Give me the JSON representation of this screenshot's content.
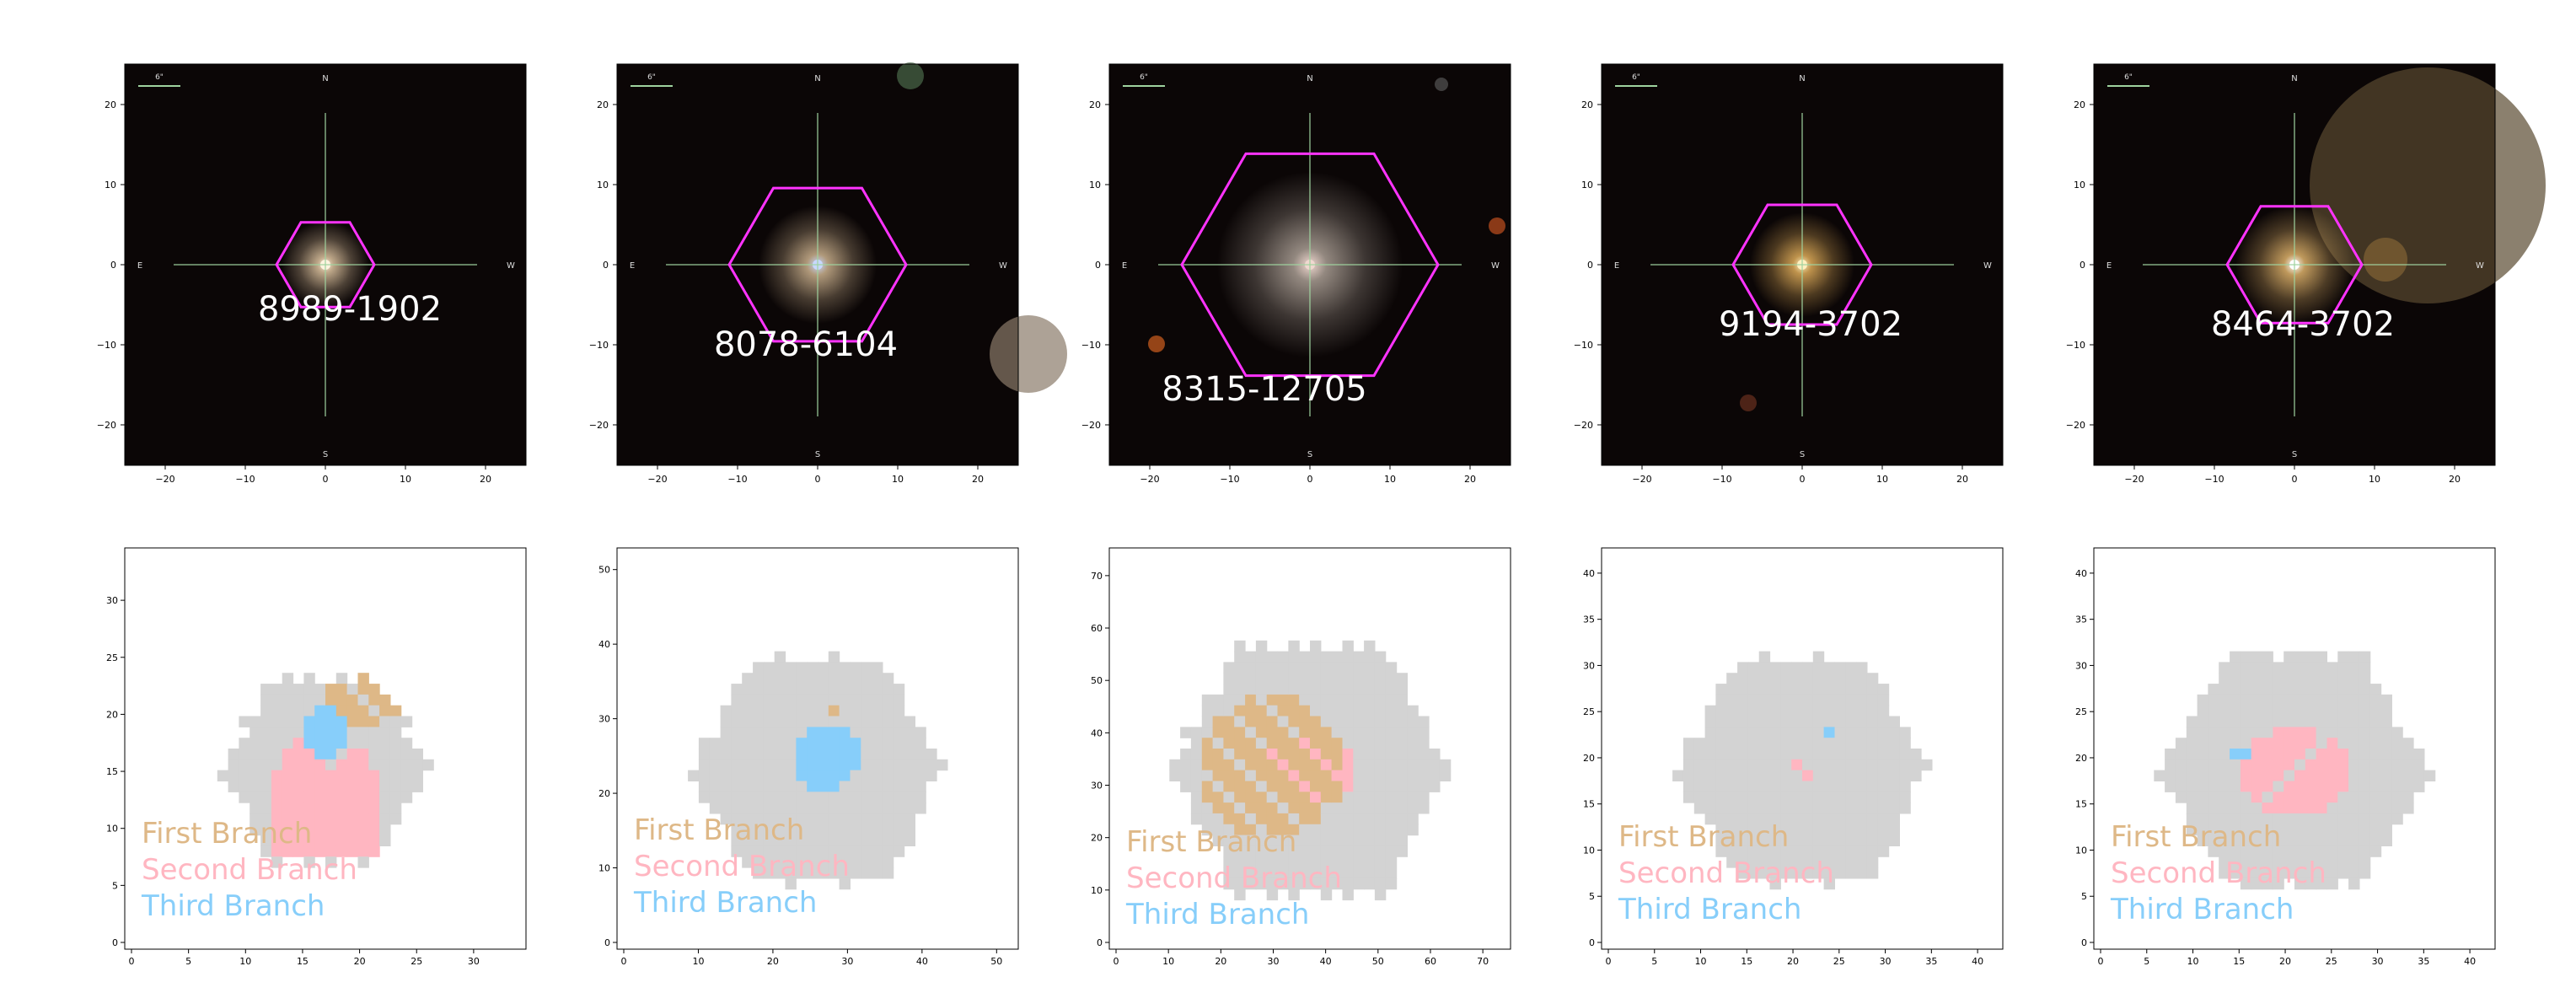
{
  "galaxies": [
    {
      "id": "8989-1902",
      "x_ticks": [
        "−20",
        "−10",
        "0",
        "10",
        "20"
      ],
      "y_ticks": [
        "20",
        "10",
        "0",
        "−10",
        "−20"
      ],
      "map_x_ticks": [
        "0",
        "5",
        "10",
        "15",
        "20",
        "25",
        "30"
      ],
      "map_y_ticks": [
        "0",
        "5",
        "10",
        "15",
        "20",
        "25",
        "30"
      ],
      "map_xmax": 34,
      "map_ymax": 34
    },
    {
      "id": "8078-6104",
      "x_ticks": [
        "−20",
        "−10",
        "0",
        "10",
        "20"
      ],
      "y_ticks": [
        "20",
        "10",
        "0",
        "−10",
        "−20"
      ],
      "map_x_ticks": [
        "0",
        "10",
        "20",
        "30",
        "40",
        "50"
      ],
      "map_y_ticks": [
        "0",
        "10",
        "20",
        "30",
        "40",
        "50"
      ],
      "map_xmax": 52,
      "map_ymax": 52
    },
    {
      "id": "8315-12705",
      "x_ticks": [
        "−20",
        "−10",
        "0",
        "10",
        "20"
      ],
      "y_ticks": [
        "20",
        "10",
        "0",
        "−10",
        "−20"
      ],
      "map_x_ticks": [
        "0",
        "10",
        "20",
        "30",
        "40",
        "50",
        "60",
        "70"
      ],
      "map_y_ticks": [
        "0",
        "10",
        "20",
        "30",
        "40",
        "50",
        "60",
        "70"
      ],
      "map_xmax": 74,
      "map_ymax": 74
    },
    {
      "id": "9194-3702",
      "x_ticks": [
        "−20",
        "−10",
        "0",
        "10",
        "20"
      ],
      "y_ticks": [
        "20",
        "10",
        "0",
        "−10",
        "−20"
      ],
      "map_x_ticks": [
        "0",
        "5",
        "10",
        "15",
        "20",
        "25",
        "30",
        "35",
        "40"
      ],
      "map_y_ticks": [
        "0",
        "5",
        "10",
        "15",
        "20",
        "25",
        "30",
        "35",
        "40"
      ],
      "map_xmax": 42,
      "map_ymax": 42
    },
    {
      "id": "8464-3702",
      "x_ticks": [
        "−20",
        "−10",
        "0",
        "10",
        "20"
      ],
      "y_ticks": [
        "20",
        "10",
        "0",
        "−10",
        "−20"
      ],
      "map_x_ticks": [
        "0",
        "5",
        "10",
        "15",
        "20",
        "25",
        "30",
        "35",
        "40"
      ],
      "map_y_ticks": [
        "0",
        "5",
        "10",
        "15",
        "20",
        "25",
        "30",
        "35",
        "40"
      ],
      "map_xmax": 42,
      "map_ymax": 42
    }
  ],
  "compass": {
    "north": "N",
    "south": "S",
    "east": "E",
    "west": "W"
  },
  "scale_label": "6\"",
  "legend": [
    {
      "label": "First Branch",
      "color": "#deb887"
    },
    {
      "label": "Second Branch",
      "color": "#ffb6c1"
    },
    {
      "label": "Third Branch",
      "color": "#87cefa"
    }
  ],
  "colors": {
    "hexagon": "#ff33ff",
    "map_background": "#d3d3d3",
    "crosshair": "#9fd39f"
  }
}
